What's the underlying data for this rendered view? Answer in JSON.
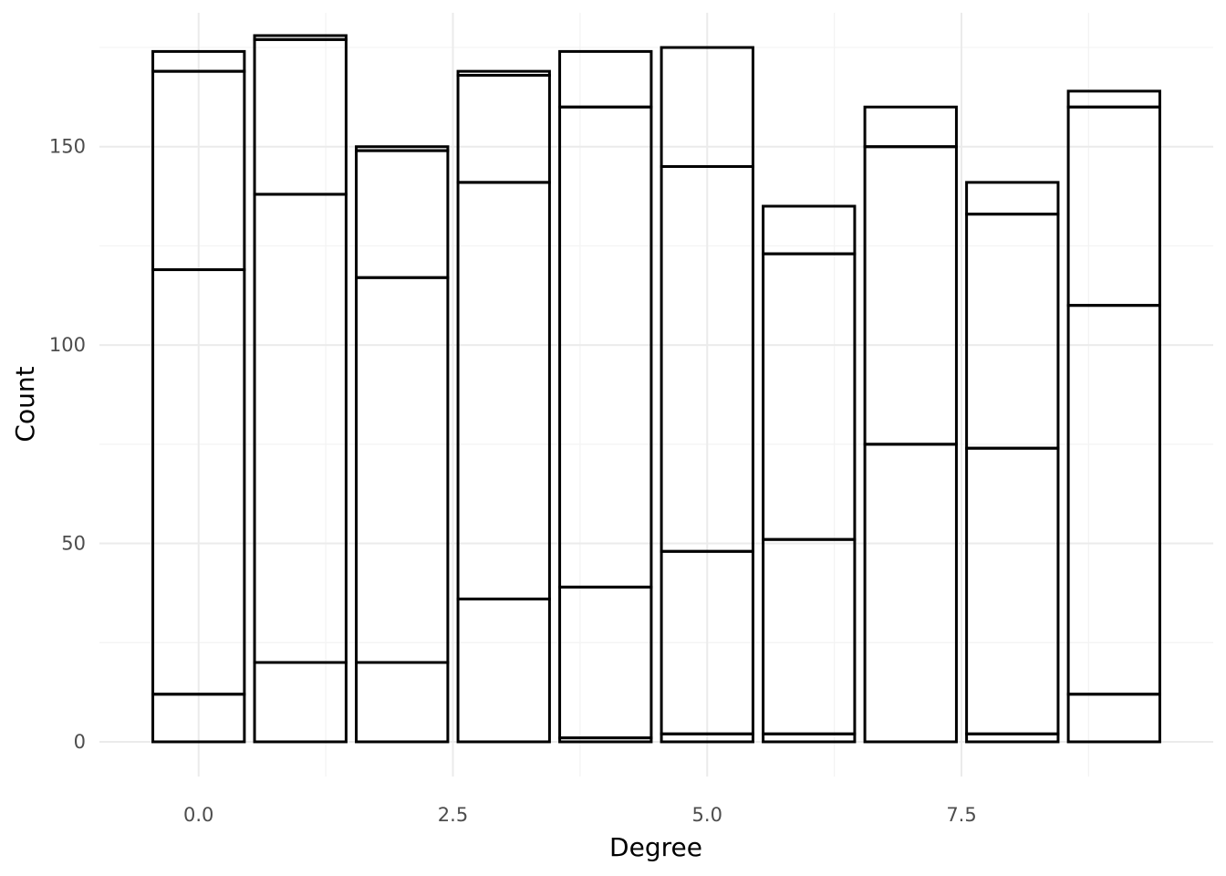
{
  "chart_data": {
    "type": "bar",
    "stacked": true,
    "xlabel": "Degree",
    "ylabel": "Count",
    "xlim": [
      -0.975,
      9.975
    ],
    "ylim": [
      -8.75,
      183.75
    ],
    "x_ticks": [
      0.0,
      2.5,
      5.0,
      7.5
    ],
    "x_tick_labels": [
      "0.0",
      "2.5",
      "5.0",
      "7.5"
    ],
    "y_ticks": [
      0,
      50,
      100,
      150
    ],
    "y_tick_labels": [
      "0",
      "50",
      "100",
      "150"
    ],
    "grid": true,
    "legend": "none",
    "bar_width": 0.9,
    "bars": [
      {
        "x": 0,
        "boundaries": [
          0,
          12,
          119,
          169,
          174
        ]
      },
      {
        "x": 1,
        "boundaries": [
          0,
          20,
          138,
          177,
          178
        ]
      },
      {
        "x": 2,
        "boundaries": [
          0,
          20,
          117,
          149,
          150
        ]
      },
      {
        "x": 3,
        "boundaries": [
          0,
          36,
          141,
          168,
          169
        ]
      },
      {
        "x": 4,
        "boundaries": [
          0,
          1,
          39,
          160,
          174
        ]
      },
      {
        "x": 5,
        "boundaries": [
          0,
          2,
          48,
          145,
          175
        ]
      },
      {
        "x": 6,
        "boundaries": [
          0,
          2,
          51,
          123,
          135
        ]
      },
      {
        "x": 7,
        "boundaries": [
          0,
          75,
          150,
          160
        ]
      },
      {
        "x": 8,
        "boundaries": [
          0,
          2,
          74,
          133,
          141
        ]
      },
      {
        "x": 9,
        "boundaries": [
          0,
          12,
          110,
          160,
          164
        ]
      }
    ]
  }
}
